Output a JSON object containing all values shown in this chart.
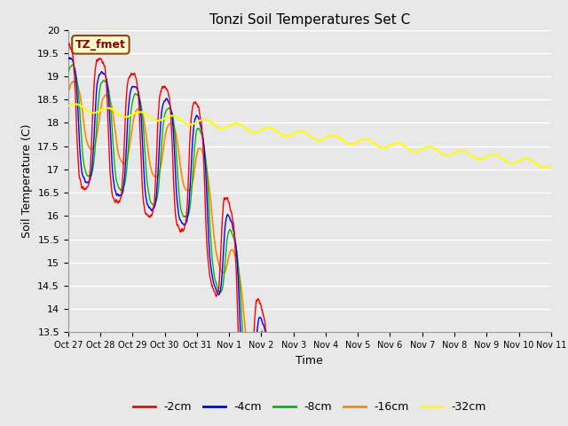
{
  "title": "Tonzi Soil Temperatures Set C",
  "xlabel": "Time",
  "ylabel": "Soil Temperature (C)",
  "ylim": [
    13.5,
    20.0
  ],
  "yticks": [
    13.5,
    14.0,
    14.5,
    15.0,
    15.5,
    16.0,
    16.5,
    17.0,
    17.5,
    18.0,
    18.5,
    19.0,
    19.5,
    20.0
  ],
  "xtick_labels": [
    "Oct 27",
    "Oct 28",
    "Oct 29",
    "Oct 30",
    "Oct 31",
    "Nov 1",
    "Nov 2",
    "Nov 3",
    "Nov 4",
    "Nov 5",
    "Nov 6",
    "Nov 7",
    "Nov 8",
    "Nov 9",
    "Nov 10",
    "Nov 11"
  ],
  "legend_label_box": "TZ_fmet",
  "legend_box_facecolor": "#ffffcc",
  "legend_box_edgecolor": "#8B4513",
  "legend_box_textcolor": "#8B0000",
  "series": [
    {
      "label": "-2cm",
      "color": "#FF0000"
    },
    {
      "label": "-4cm",
      "color": "#0000FF"
    },
    {
      "label": "-8cm",
      "color": "#00BB00"
    },
    {
      "label": "-16cm",
      "color": "#FF8800"
    },
    {
      "label": "-32cm",
      "color": "#FFFF00"
    }
  ],
  "bg_color": "#E8E8E8",
  "plot_bg_color": "#E8E8E8",
  "grid_color": "#FFFFFF",
  "n_days": 15,
  "pts_per_day": 96
}
